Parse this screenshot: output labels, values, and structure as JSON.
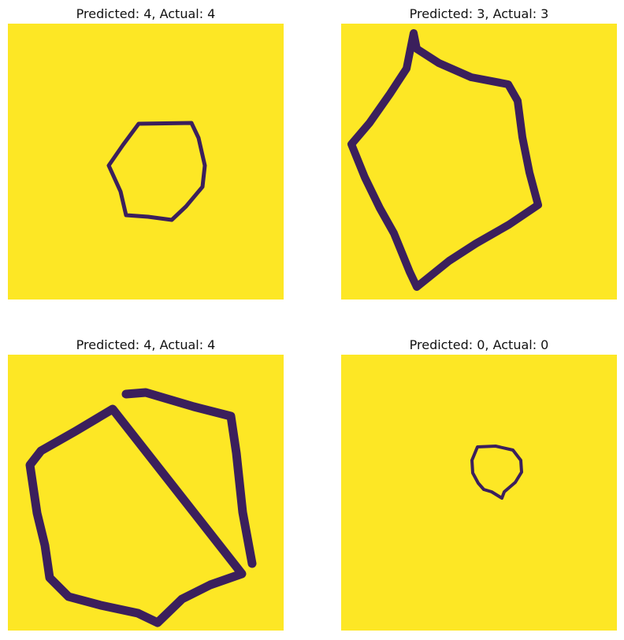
{
  "colors": {
    "background_fill": "#fde725",
    "outline_stroke": "#3b1f5c",
    "outline_edge": "#21918c"
  },
  "panels": [
    {
      "title": "Predicted: 4, Actual: 4"
    },
    {
      "title": "Predicted: 3, Actual: 3"
    },
    {
      "title": "Predicted: 4, Actual: 4"
    },
    {
      "title": "Predicted: 0, Actual: 0"
    }
  ]
}
